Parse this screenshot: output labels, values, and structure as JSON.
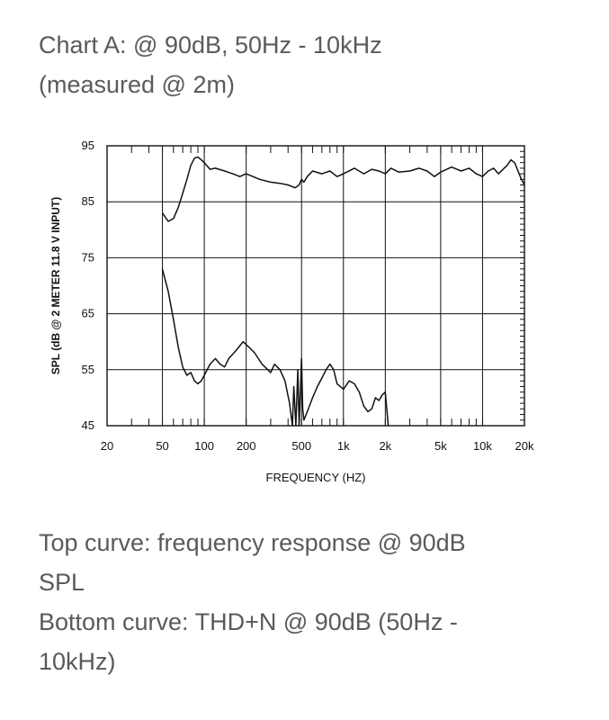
{
  "caption_top": {
    "line1": "Chart A: @ 90dB, 50Hz - 10kHz",
    "line2": "(measured @ 2m)"
  },
  "caption_bottom": {
    "line1": "Top curve: frequency response @ 90dB",
    "line2": "SPL",
    "line3": "Bottom curve: THD+N @ 90dB (50Hz -",
    "line4": "10kHz)"
  },
  "chart_data": {
    "type": "line",
    "xlabel": "FREQUENCY  (HZ)",
    "ylabel": "SPL (dB @ 2 METER 11.8 V  INPUT)",
    "xscale": "log",
    "xlim": [
      20,
      20000
    ],
    "ylim": [
      45,
      95
    ],
    "grid": true,
    "x_ticks": [
      {
        "value": 20,
        "label": "20"
      },
      {
        "value": 50,
        "label": "50"
      },
      {
        "value": 100,
        "label": "100"
      },
      {
        "value": 200,
        "label": "200"
      },
      {
        "value": 500,
        "label": "500"
      },
      {
        "value": 1000,
        "label": "1k"
      },
      {
        "value": 2000,
        "label": "2k"
      },
      {
        "value": 5000,
        "label": "5k"
      },
      {
        "value": 10000,
        "label": "10k"
      },
      {
        "value": 20000,
        "label": "20k"
      }
    ],
    "y_ticks": [
      {
        "value": 45,
        "label": "45"
      },
      {
        "value": 55,
        "label": "55"
      },
      {
        "value": 65,
        "label": "65"
      },
      {
        "value": 75,
        "label": "75"
      },
      {
        "value": 85,
        "label": "85"
      },
      {
        "value": 95,
        "label": "95"
      }
    ],
    "series": [
      {
        "points": [
          [
            50,
            83
          ],
          [
            55,
            81.5
          ],
          [
            60,
            82
          ],
          [
            65,
            84
          ],
          [
            70,
            86.5
          ],
          [
            75,
            89
          ],
          [
            80,
            91.5
          ],
          [
            85,
            92.8
          ],
          [
            90,
            93
          ],
          [
            95,
            92.5
          ],
          [
            100,
            92
          ],
          [
            110,
            90.8
          ],
          [
            120,
            91
          ],
          [
            140,
            90.5
          ],
          [
            160,
            90
          ],
          [
            180,
            89.5
          ],
          [
            200,
            90
          ],
          [
            250,
            89
          ],
          [
            300,
            88.5
          ],
          [
            350,
            88.3
          ],
          [
            400,
            88
          ],
          [
            450,
            87.5
          ],
          [
            480,
            88
          ],
          [
            500,
            89
          ],
          [
            520,
            88.5
          ],
          [
            550,
            89.5
          ],
          [
            600,
            90.5
          ],
          [
            700,
            90
          ],
          [
            800,
            90.5
          ],
          [
            900,
            89.5
          ],
          [
            1000,
            90
          ],
          [
            1200,
            91
          ],
          [
            1400,
            90
          ],
          [
            1600,
            90.8
          ],
          [
            1800,
            90.5
          ],
          [
            2000,
            90
          ],
          [
            2200,
            91
          ],
          [
            2500,
            90.3
          ],
          [
            3000,
            90.5
          ],
          [
            3500,
            91
          ],
          [
            4000,
            90.5
          ],
          [
            4500,
            89.5
          ],
          [
            5000,
            90.3
          ],
          [
            6000,
            91.2
          ],
          [
            7000,
            90.5
          ],
          [
            8000,
            91
          ],
          [
            9000,
            90
          ],
          [
            10000,
            89.5
          ],
          [
            11000,
            90.5
          ],
          [
            12000,
            91
          ],
          [
            13000,
            90
          ],
          [
            15000,
            91.5
          ],
          [
            16000,
            92.5
          ],
          [
            17000,
            92
          ],
          [
            18000,
            90.5
          ],
          [
            19000,
            89
          ],
          [
            20000,
            88
          ]
        ]
      },
      {
        "points": [
          [
            50,
            73
          ],
          [
            55,
            69
          ],
          [
            60,
            64
          ],
          [
            65,
            59
          ],
          [
            70,
            55.5
          ],
          [
            75,
            54
          ],
          [
            80,
            54.5
          ],
          [
            85,
            53
          ],
          [
            90,
            52.5
          ],
          [
            95,
            53
          ],
          [
            100,
            54
          ],
          [
            110,
            56
          ],
          [
            120,
            57
          ],
          [
            130,
            56
          ],
          [
            140,
            55.5
          ],
          [
            150,
            57
          ],
          [
            170,
            58.5
          ],
          [
            190,
            60
          ],
          [
            210,
            59
          ],
          [
            230,
            58
          ],
          [
            260,
            56
          ],
          [
            300,
            54.5
          ],
          [
            320,
            56
          ],
          [
            350,
            55
          ],
          [
            380,
            53
          ],
          [
            410,
            49
          ],
          [
            430,
            45
          ],
          [
            440,
            52
          ],
          [
            455,
            45
          ],
          [
            470,
            55
          ],
          [
            480,
            45
          ],
          [
            500,
            57
          ],
          [
            510,
            48
          ],
          [
            520,
            46
          ],
          [
            550,
            47.5
          ],
          [
            600,
            50
          ],
          [
            650,
            52
          ],
          [
            700,
            53.5
          ],
          [
            750,
            55
          ],
          [
            800,
            56
          ],
          [
            850,
            55
          ],
          [
            900,
            52.5
          ],
          [
            1000,
            51.5
          ],
          [
            1100,
            53
          ],
          [
            1200,
            52.5
          ],
          [
            1300,
            51
          ],
          [
            1400,
            48.5
          ],
          [
            1500,
            47.5
          ],
          [
            1600,
            48
          ],
          [
            1700,
            50
          ],
          [
            1800,
            49.5
          ],
          [
            1900,
            50.5
          ],
          [
            2000,
            51
          ],
          [
            2100,
            45
          ]
        ]
      }
    ]
  }
}
